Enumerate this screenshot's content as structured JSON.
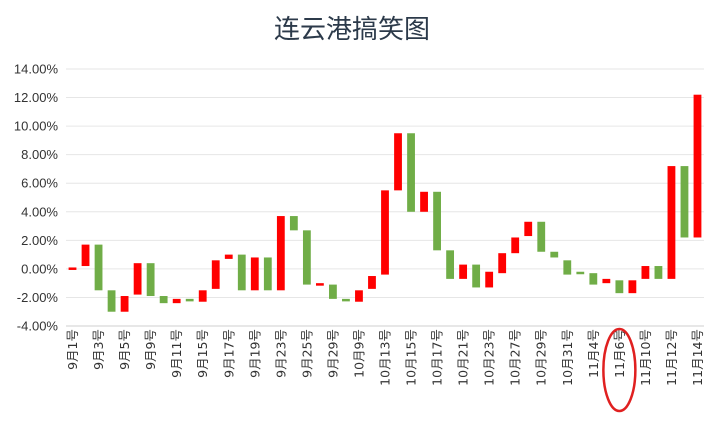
{
  "chart_data": {
    "type": "waterfall",
    "title": "连云港搞笑图",
    "xlabel": "",
    "ylabel": "",
    "ylim": [
      -0.04,
      0.14
    ],
    "yticks": [
      -0.04,
      -0.02,
      0.0,
      0.02,
      0.04,
      0.06,
      0.08,
      0.1,
      0.12,
      0.14
    ],
    "ytick_labels": [
      "-4.00%",
      "-2.00%",
      "0.00%",
      "2.00%",
      "4.00%",
      "6.00%",
      "8.00%",
      "10.00%",
      "12.00%",
      "14.00%"
    ],
    "x_tick_labels": [
      "9月1号",
      "9月3号",
      "9月5号",
      "9月9号",
      "9月11号",
      "9月15号",
      "9月17号",
      "9月19号",
      "9月23号",
      "9月25号",
      "9月29号",
      "10月9号",
      "10月13号",
      "10月15号",
      "10月17号",
      "10月21号",
      "10月23号",
      "10月27号",
      "10月29号",
      "10月31号",
      "11月4号",
      "11月6号",
      "11月10号",
      "11月12号",
      "11月14号"
    ],
    "colors": {
      "up": "#ff0000",
      "down": "#70ad47",
      "highlight": "#e02020"
    },
    "highlighted_label": "11月6号",
    "bars": [
      {
        "open": 0.0,
        "close": 0.001
      },
      {
        "open": 0.002,
        "close": 0.017
      },
      {
        "open": 0.017,
        "close": -0.015
      },
      {
        "open": -0.015,
        "close": -0.03
      },
      {
        "open": -0.03,
        "close": -0.019
      },
      {
        "open": -0.018,
        "close": 0.004
      },
      {
        "open": 0.004,
        "close": -0.019
      },
      {
        "open": -0.019,
        "close": -0.024
      },
      {
        "open": -0.024,
        "close": -0.021
      },
      {
        "open": -0.021,
        "close": -0.022
      },
      {
        "open": -0.023,
        "close": -0.015
      },
      {
        "open": -0.014,
        "close": 0.006
      },
      {
        "open": 0.007,
        "close": 0.01
      },
      {
        "open": 0.01,
        "close": -0.015
      },
      {
        "open": -0.015,
        "close": 0.008
      },
      {
        "open": 0.008,
        "close": -0.015
      },
      {
        "open": -0.015,
        "close": 0.037
      },
      {
        "open": 0.037,
        "close": 0.027
      },
      {
        "open": 0.027,
        "close": -0.011
      },
      {
        "open": -0.011,
        "close": -0.01
      },
      {
        "open": -0.011,
        "close": -0.021
      },
      {
        "open": -0.021,
        "close": -0.022
      },
      {
        "open": -0.023,
        "close": -0.015
      },
      {
        "open": -0.014,
        "close": -0.005
      },
      {
        "open": -0.004,
        "close": 0.055
      },
      {
        "open": 0.055,
        "close": 0.095
      },
      {
        "open": 0.095,
        "close": 0.04
      },
      {
        "open": 0.04,
        "close": 0.054
      },
      {
        "open": 0.054,
        "close": 0.013
      },
      {
        "open": 0.013,
        "close": -0.007
      },
      {
        "open": -0.007,
        "close": 0.003
      },
      {
        "open": 0.003,
        "close": -0.013
      },
      {
        "open": -0.013,
        "close": -0.002
      },
      {
        "open": -0.003,
        "close": 0.011
      },
      {
        "open": 0.011,
        "close": 0.022
      },
      {
        "open": 0.023,
        "close": 0.033
      },
      {
        "open": 0.033,
        "close": 0.012
      },
      {
        "open": 0.012,
        "close": 0.008
      },
      {
        "open": 0.006,
        "close": -0.004
      },
      {
        "open": -0.002,
        "close": -0.003
      },
      {
        "open": -0.003,
        "close": -0.011
      },
      {
        "open": -0.01,
        "close": -0.007
      },
      {
        "open": -0.008,
        "close": -0.017
      },
      {
        "open": -0.017,
        "close": -0.008
      },
      {
        "open": -0.007,
        "close": 0.002
      },
      {
        "open": 0.002,
        "close": -0.007
      },
      {
        "open": -0.007,
        "close": 0.072
      },
      {
        "open": 0.072,
        "close": 0.022
      },
      {
        "open": 0.022,
        "close": 0.122
      }
    ]
  }
}
